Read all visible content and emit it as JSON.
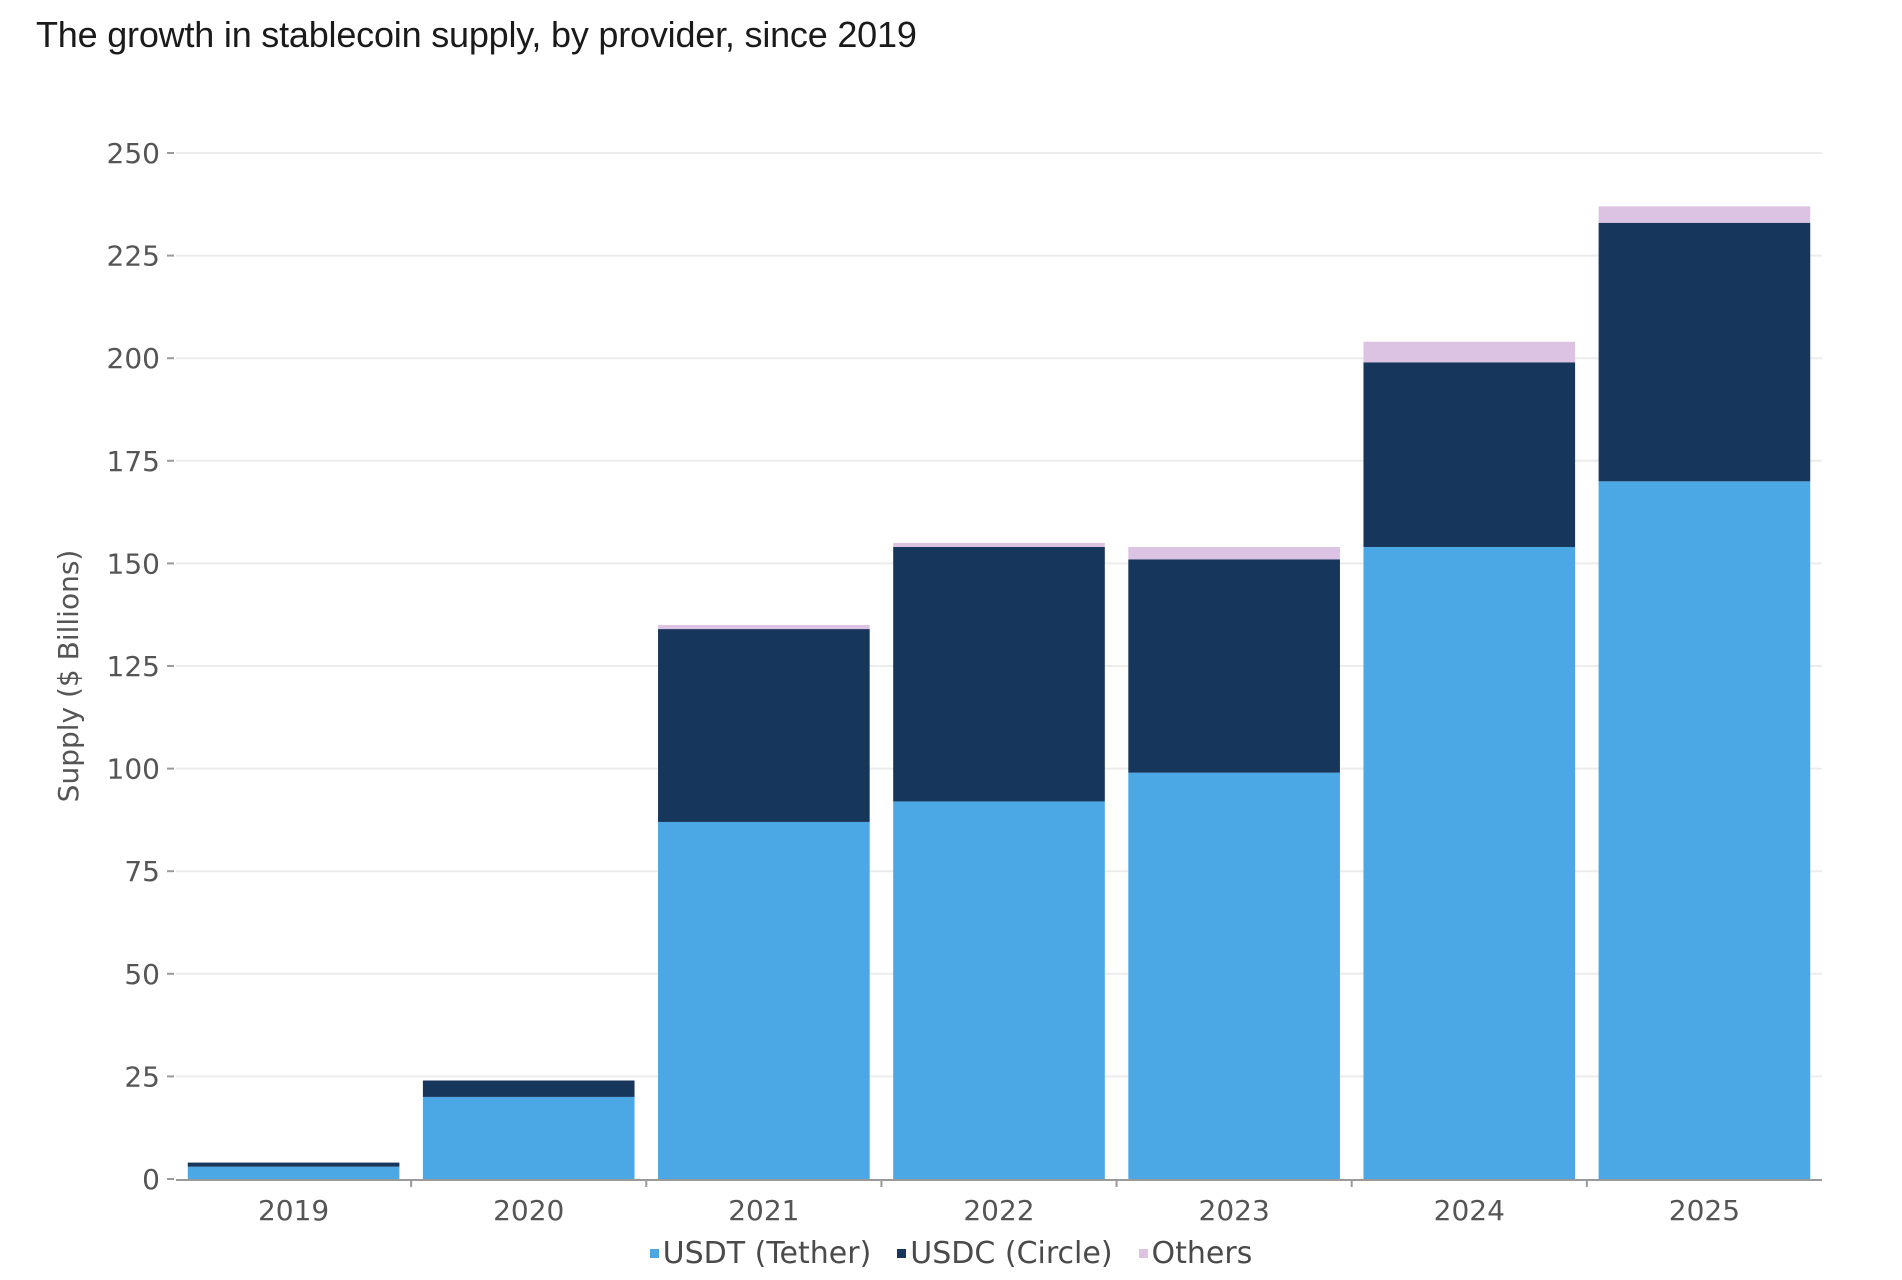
{
  "title": "The growth in stablecoin supply, by provider, since 2019",
  "chart_data": {
    "type": "bar",
    "stacked": true,
    "title": "The growth in stablecoin supply, by provider, since 2019",
    "xlabel": "",
    "ylabel": "Supply ($ Billions)",
    "ylim": [
      0,
      250
    ],
    "yticks": [
      0,
      25,
      50,
      75,
      100,
      125,
      150,
      175,
      200,
      225,
      250
    ],
    "grid": true,
    "legend_position": "bottom-center",
    "categories": [
      "2019",
      "2020",
      "2021",
      "2022",
      "2023",
      "2024",
      "2025"
    ],
    "series": [
      {
        "name": "USDT (Tether)",
        "color": "#4ca8e5",
        "values": [
          3,
          20,
          87,
          92,
          99,
          154,
          170
        ]
      },
      {
        "name": "USDC (Circle)",
        "color": "#17365c",
        "values": [
          1,
          4,
          47,
          62,
          52,
          45,
          63
        ]
      },
      {
        "name": "Others",
        "color": "#dcc2e3",
        "values": [
          0,
          0,
          1,
          1,
          3,
          5,
          4
        ]
      }
    ]
  }
}
